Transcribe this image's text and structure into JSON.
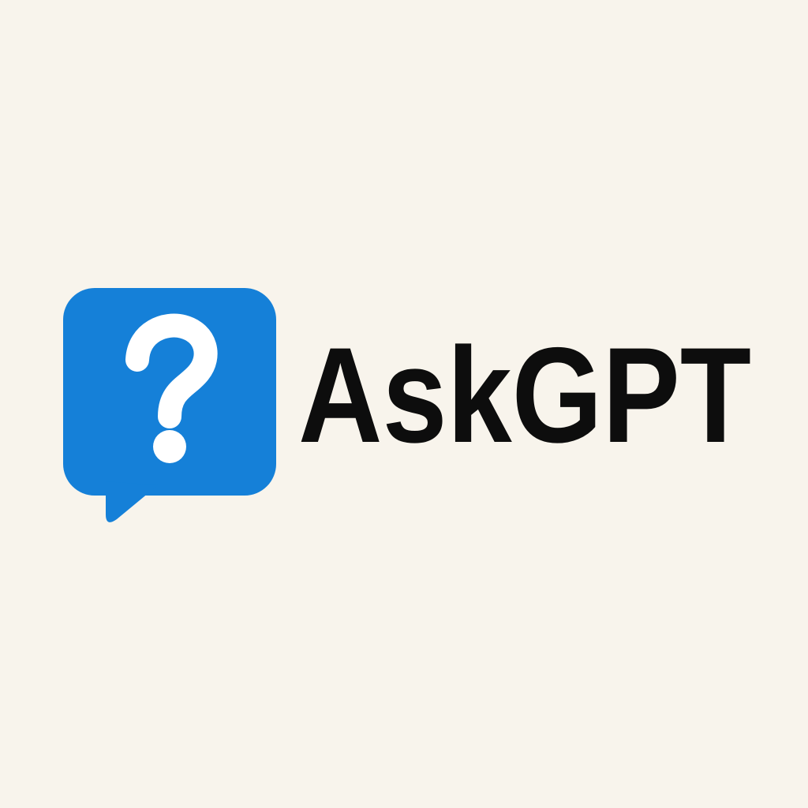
{
  "logo": {
    "name": "AskGPT"
  }
}
